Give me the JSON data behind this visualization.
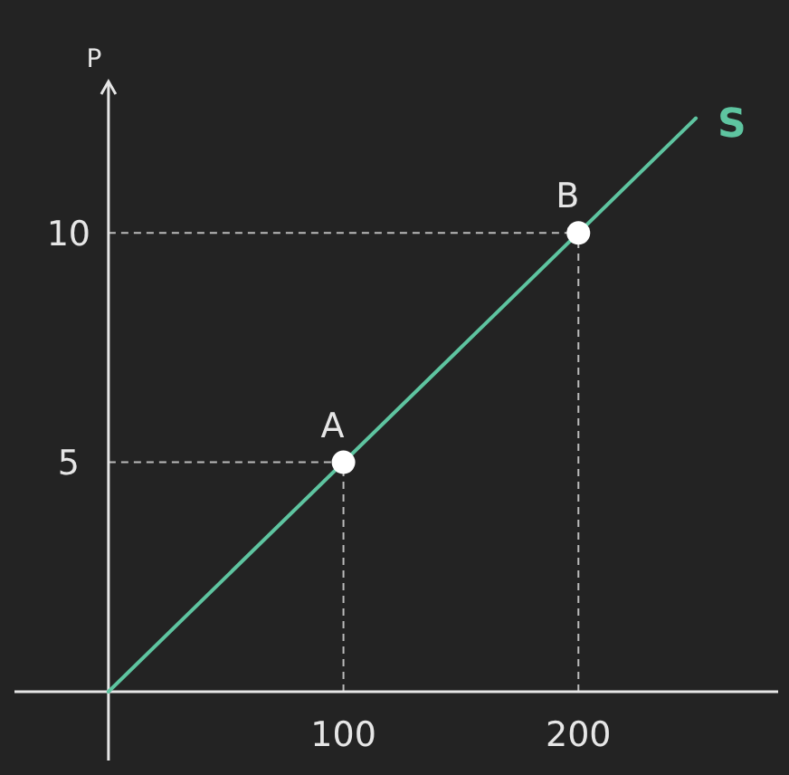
{
  "chart_data": {
    "type": "line",
    "ylabel": "P",
    "xlim": [
      -40,
      285
    ],
    "ylim": [
      -1.5,
      13.3
    ],
    "xticks": [
      100,
      200
    ],
    "yticks": [
      5,
      10
    ],
    "grid": false,
    "line_style": "solid",
    "series": [
      {
        "name": "S",
        "color": "#5ec4a0",
        "x": [
          0,
          250
        ],
        "values": [
          0,
          12.5
        ]
      },
      {
        "type": "scatter",
        "color": "#ffffff",
        "x": [
          100,
          200
        ],
        "values": [
          5,
          10
        ],
        "marker": "circle"
      }
    ],
    "ref_lines": [
      {
        "axis": "x",
        "value": 100,
        "line_style": "dashed",
        "color": "#bbbbbb"
      },
      {
        "axis": "x",
        "value": 200,
        "line_style": "dashed",
        "color": "#bbbbbb"
      },
      {
        "axis": "y",
        "value": 5,
        "line_style": "dashed",
        "color": "#bbbbbb"
      },
      {
        "axis": "y",
        "value": 10,
        "line_style": "dashed",
        "color": "#bbbbbb"
      }
    ],
    "annotations": [
      {
        "text": "A",
        "x": 100,
        "y": 5
      },
      {
        "text": "B",
        "x": 200,
        "y": 10
      }
    ]
  }
}
